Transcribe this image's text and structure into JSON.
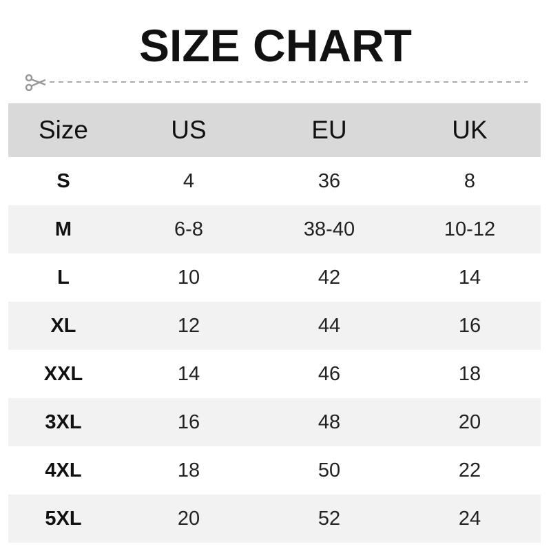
{
  "title": "SIZE CHART",
  "icons": {
    "cut_line": "scissors-icon"
  },
  "colors": {
    "header_bg": "#d9d9d9",
    "alt_row_bg": "#f2f2f2",
    "cut_line": "#999999"
  },
  "table": {
    "headers": [
      "Size",
      "US",
      "EU",
      "UK"
    ],
    "rows": [
      [
        "S",
        "4",
        "36",
        "8"
      ],
      [
        "M",
        "6-8",
        "38-40",
        "10-12"
      ],
      [
        "L",
        "10",
        "42",
        "14"
      ],
      [
        "XL",
        "12",
        "44",
        "16"
      ],
      [
        "XXL",
        "14",
        "46",
        "18"
      ],
      [
        "3XL",
        "16",
        "48",
        "20"
      ],
      [
        "4XL",
        "18",
        "50",
        "22"
      ],
      [
        "5XL",
        "20",
        "52",
        "24"
      ]
    ]
  }
}
